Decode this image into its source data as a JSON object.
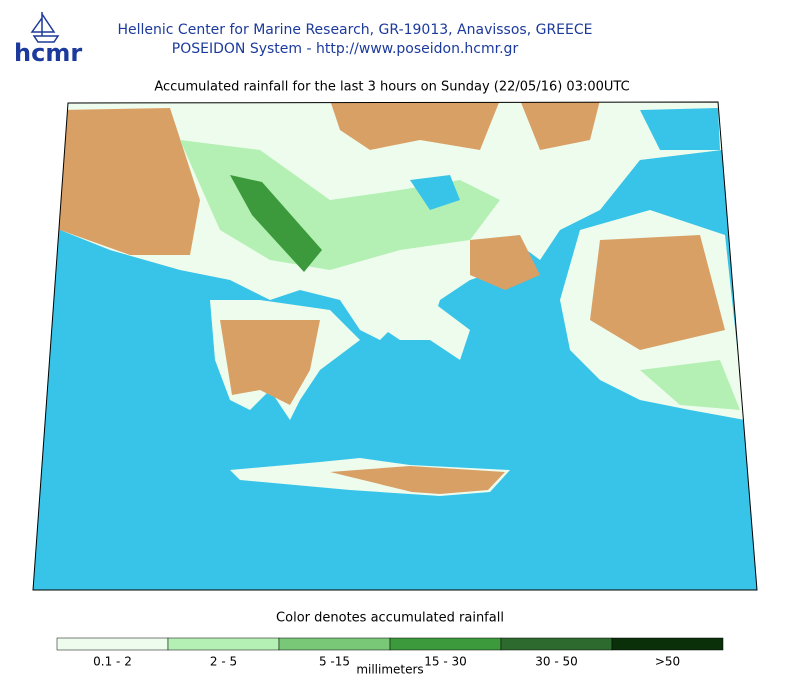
{
  "header": {
    "logo": "hcmr",
    "institution": "Hellenic Center for Marine Research, GR-19013, Anavissos, GREECE",
    "system": "POSEIDON System - http://www.poseidon.hcmr.gr"
  },
  "map": {
    "title": "Accumulated rainfall for the last 3 hours on Sunday (22/05/16) 03:00UTC"
  },
  "legend": {
    "title": "Color denotes accumulated rainfall",
    "units": "millimeters",
    "items": [
      {
        "label": "0.1 - 2",
        "color": "#eefcee"
      },
      {
        "label": "2 - 5",
        "color": "#b4f0b4"
      },
      {
        "label": "5 -15",
        "color": "#78c878"
      },
      {
        "label": "15 - 30",
        "color": "#3c9a3c"
      },
      {
        "label": "30 - 50",
        "color": "#2d6a2d"
      },
      {
        "label": ">50",
        "color": "#0a300a"
      }
    ]
  }
}
